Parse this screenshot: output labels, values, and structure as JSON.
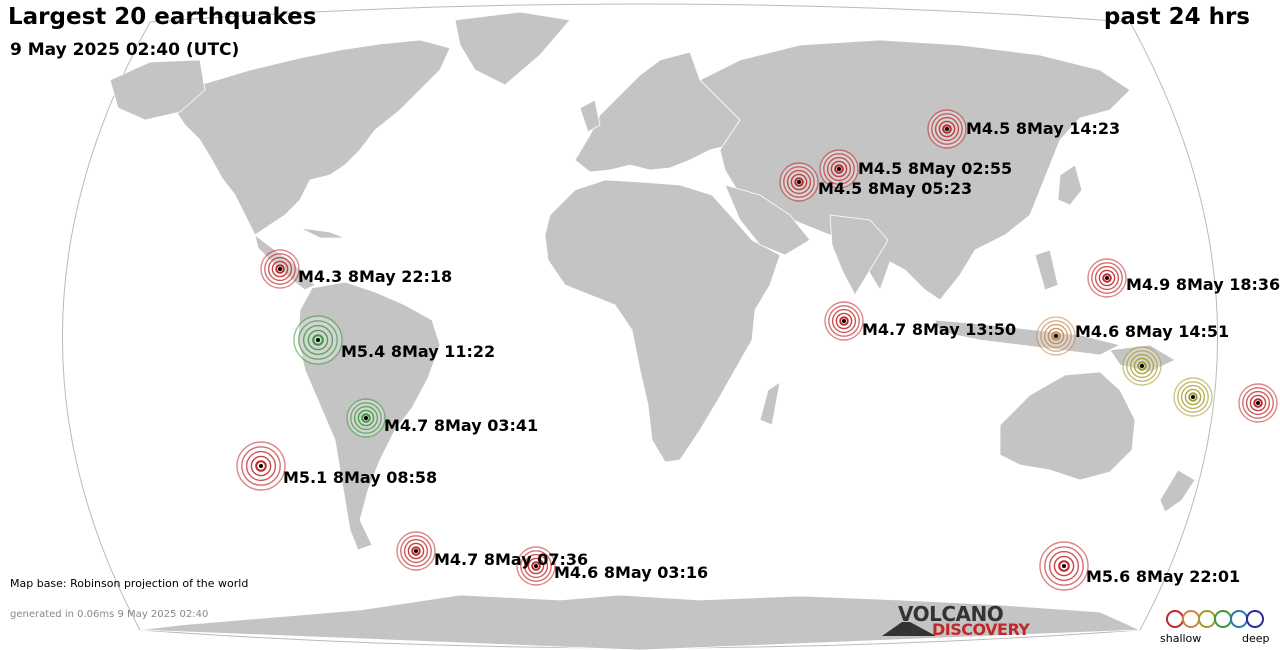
{
  "header": {
    "title": "Largest 20 earthquakes",
    "subtitle": "9 May 2025 02:40 (UTC)",
    "period": "past 24 hrs"
  },
  "footer": {
    "map_base": "Map base: Robinson projection of the world",
    "generated": "generated in 0.06ms  9 May 2025 02:40"
  },
  "logo": {
    "line1": "VOLCANO",
    "line2": "DISCOVERY"
  },
  "legend": {
    "shallow": "shallow",
    "deep": "deep"
  },
  "colors": {
    "ocean": "#ffffff",
    "land": "#c4c4c4",
    "shallow": "#c0282a",
    "mid": "#c8864a",
    "intermediate": "#a39a2a",
    "green": "#3a9a3a",
    "deep": "#2a2aa0"
  },
  "quakes": [
    {
      "label": "M4.5  8May 14:23",
      "depth_color": "shallow"
    },
    {
      "label": "M4.5  8May 02:55",
      "depth_color": "shallow"
    },
    {
      "label": "M4.5  8May 05:23",
      "depth_color": "shallow"
    },
    {
      "label": "M4.3  8May 22:18",
      "depth_color": "shallow"
    },
    {
      "label": "M4.9  8May 18:36",
      "depth_color": "shallow"
    },
    {
      "label": "M4.7  8May 13:50",
      "depth_color": "shallow"
    },
    {
      "label": "M4.6  8May 14:51",
      "depth_color": "mid"
    },
    {
      "label": "M5.4  8May 11:22",
      "depth_color": "green"
    },
    {
      "label": "M4.7  8May 03:41",
      "depth_color": "green"
    },
    {
      "label": "M5.1  8May 08:58",
      "depth_color": "shallow"
    },
    {
      "label": "M4.7  8May 07:36",
      "depth_color": "shallow"
    },
    {
      "label": "M4.6  8May 03:16",
      "depth_color": "shallow"
    },
    {
      "label": "M5.6  8May 22:01",
      "depth_color": "shallow"
    },
    {
      "label": "",
      "depth_color": "intermediate"
    },
    {
      "label": "",
      "depth_color": "intermediate"
    },
    {
      "label": "",
      "depth_color": "shallow"
    }
  ]
}
